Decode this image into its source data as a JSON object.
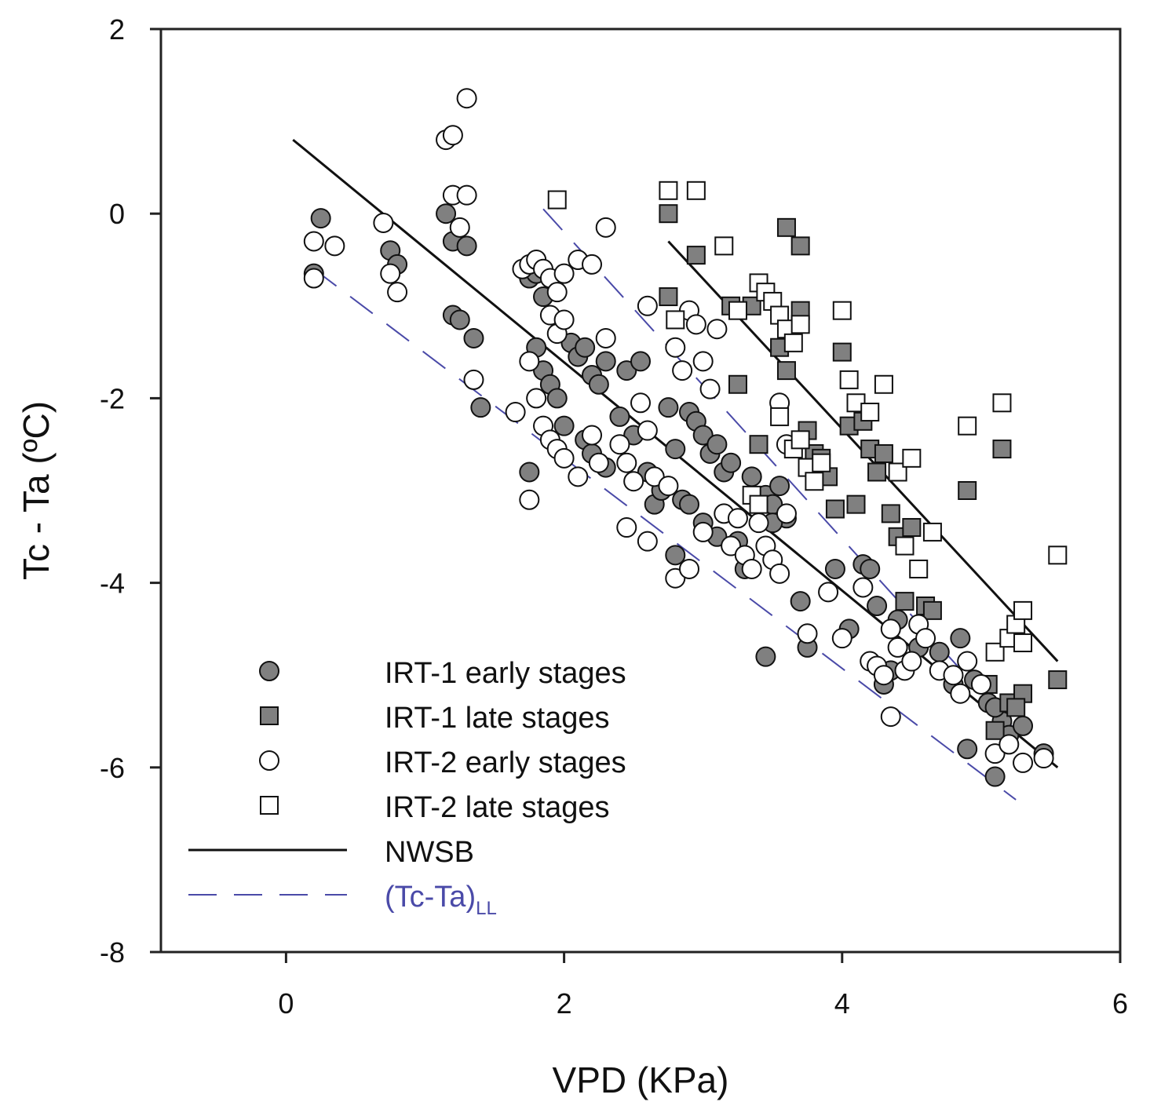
{
  "chart_data": {
    "type": "scatter",
    "title": "",
    "xlabel": "VPD (KPa)",
    "ylabel": "Tc - Ta (ºC)",
    "xlim": [
      -0.9,
      6
    ],
    "ylim": [
      -8,
      2
    ],
    "xticks": [
      "0",
      "2",
      "4",
      "6"
    ],
    "yticks": [
      "2",
      "0",
      "-2",
      "-4",
      "-6",
      "-8"
    ],
    "legend_position": "bottom-left",
    "series": [
      {
        "name": "IRT-1 early stages",
        "label": "IRT-1 early stages",
        "marker": "circle",
        "fill": "#808080",
        "points": [
          [
            0.25,
            -0.05
          ],
          [
            0.2,
            -0.65
          ],
          [
            0.75,
            -0.4
          ],
          [
            0.8,
            -0.55
          ],
          [
            1.15,
            0.0
          ],
          [
            1.2,
            -0.3
          ],
          [
            1.3,
            -0.35
          ],
          [
            1.2,
            -1.1
          ],
          [
            1.25,
            -1.15
          ],
          [
            1.35,
            -1.35
          ],
          [
            1.4,
            -2.1
          ],
          [
            1.75,
            -0.7
          ],
          [
            1.8,
            -0.65
          ],
          [
            1.85,
            -0.9
          ],
          [
            1.8,
            -1.45
          ],
          [
            1.85,
            -1.7
          ],
          [
            1.9,
            -1.85
          ],
          [
            1.95,
            -2.0
          ],
          [
            2.0,
            -2.3
          ],
          [
            2.05,
            -1.4
          ],
          [
            2.1,
            -1.55
          ],
          [
            2.15,
            -1.45
          ],
          [
            2.2,
            -1.75
          ],
          [
            2.25,
            -1.85
          ],
          [
            2.3,
            -1.6
          ],
          [
            2.15,
            -2.45
          ],
          [
            2.2,
            -2.6
          ],
          [
            2.3,
            -2.75
          ],
          [
            2.4,
            -2.2
          ],
          [
            2.5,
            -2.4
          ],
          [
            2.6,
            -2.8
          ],
          [
            2.65,
            -3.15
          ],
          [
            2.7,
            -3.0
          ],
          [
            2.45,
            -1.7
          ],
          [
            2.55,
            -1.6
          ],
          [
            2.75,
            -2.1
          ],
          [
            2.8,
            -2.55
          ],
          [
            2.85,
            -3.1
          ],
          [
            2.9,
            -2.15
          ],
          [
            2.95,
            -2.25
          ],
          [
            3.0,
            -2.4
          ],
          [
            3.05,
            -2.6
          ],
          [
            3.1,
            -2.5
          ],
          [
            3.15,
            -2.8
          ],
          [
            3.2,
            -2.7
          ],
          [
            3.25,
            -3.55
          ],
          [
            3.3,
            -3.85
          ],
          [
            3.35,
            -2.85
          ],
          [
            3.4,
            -3.1
          ],
          [
            3.45,
            -3.05
          ],
          [
            3.5,
            -3.15
          ],
          [
            3.55,
            -2.95
          ],
          [
            3.6,
            -3.3
          ],
          [
            1.75,
            -2.8
          ],
          [
            2.8,
            -3.7
          ],
          [
            2.9,
            -3.15
          ],
          [
            3.0,
            -3.35
          ],
          [
            3.1,
            -3.5
          ],
          [
            3.5,
            -3.35
          ],
          [
            3.7,
            -4.2
          ],
          [
            3.75,
            -4.7
          ],
          [
            3.45,
            -4.8
          ],
          [
            3.95,
            -3.85
          ],
          [
            4.05,
            -4.5
          ],
          [
            4.15,
            -3.8
          ],
          [
            4.2,
            -3.85
          ],
          [
            4.25,
            -4.25
          ],
          [
            4.3,
            -5.1
          ],
          [
            4.35,
            -4.95
          ],
          [
            4.4,
            -4.4
          ],
          [
            4.55,
            -4.7
          ],
          [
            4.7,
            -4.75
          ],
          [
            4.8,
            -5.1
          ],
          [
            4.85,
            -4.6
          ],
          [
            4.9,
            -5.8
          ],
          [
            4.95,
            -5.05
          ],
          [
            5.05,
            -5.3
          ],
          [
            5.1,
            -6.1
          ],
          [
            5.15,
            -5.5
          ],
          [
            5.2,
            -5.65
          ],
          [
            5.3,
            -5.55
          ],
          [
            5.45,
            -5.85
          ],
          [
            5.1,
            -5.35
          ]
        ]
      },
      {
        "name": "IRT-1 late stages",
        "label": "IRT-1 late stages",
        "marker": "square",
        "fill": "#808080",
        "points": [
          [
            2.75,
            0.0
          ],
          [
            2.75,
            -0.9
          ],
          [
            2.95,
            -0.45
          ],
          [
            3.2,
            -1.0
          ],
          [
            3.25,
            -1.85
          ],
          [
            3.35,
            -1.0
          ],
          [
            3.4,
            -2.5
          ],
          [
            3.6,
            -0.15
          ],
          [
            3.7,
            -0.35
          ],
          [
            3.55,
            -1.45
          ],
          [
            3.6,
            -1.7
          ],
          [
            3.7,
            -1.05
          ],
          [
            3.75,
            -2.35
          ],
          [
            3.8,
            -2.6
          ],
          [
            3.85,
            -2.65
          ],
          [
            3.9,
            -2.85
          ],
          [
            3.95,
            -3.2
          ],
          [
            4.0,
            -1.5
          ],
          [
            4.05,
            -2.3
          ],
          [
            4.1,
            -3.15
          ],
          [
            4.15,
            -2.25
          ],
          [
            4.2,
            -2.55
          ],
          [
            4.25,
            -2.8
          ],
          [
            4.3,
            -2.6
          ],
          [
            4.35,
            -3.25
          ],
          [
            4.4,
            -3.5
          ],
          [
            4.45,
            -4.2
          ],
          [
            4.5,
            -3.4
          ],
          [
            4.6,
            -4.25
          ],
          [
            4.65,
            -4.3
          ],
          [
            4.9,
            -3.0
          ],
          [
            5.05,
            -5.1
          ],
          [
            5.15,
            -2.55
          ],
          [
            5.2,
            -5.3
          ],
          [
            5.3,
            -5.2
          ],
          [
            5.55,
            -5.05
          ],
          [
            5.1,
            -5.6
          ],
          [
            5.25,
            -5.35
          ]
        ]
      },
      {
        "name": "IRT-2 early stages",
        "label": "IRT-2 early stages",
        "marker": "circle",
        "fill": "#ffffff",
        "points": [
          [
            0.2,
            -0.3
          ],
          [
            0.2,
            -0.7
          ],
          [
            0.35,
            -0.35
          ],
          [
            0.7,
            -0.1
          ],
          [
            0.75,
            -0.65
          ],
          [
            0.8,
            -0.85
          ],
          [
            1.15,
            0.8
          ],
          [
            1.2,
            0.85
          ],
          [
            1.3,
            1.25
          ],
          [
            1.2,
            0.2
          ],
          [
            1.3,
            0.2
          ],
          [
            1.25,
            -0.15
          ],
          [
            1.35,
            -1.8
          ],
          [
            1.65,
            -2.15
          ],
          [
            1.7,
            -0.6
          ],
          [
            1.75,
            -0.55
          ],
          [
            1.8,
            -0.5
          ],
          [
            1.85,
            -0.6
          ],
          [
            1.9,
            -0.7
          ],
          [
            1.95,
            -0.85
          ],
          [
            2.0,
            -0.65
          ],
          [
            2.1,
            -0.5
          ],
          [
            2.2,
            -0.55
          ],
          [
            2.3,
            -0.15
          ],
          [
            1.9,
            -1.1
          ],
          [
            1.95,
            -1.3
          ],
          [
            2.0,
            -1.15
          ],
          [
            1.75,
            -1.6
          ],
          [
            1.8,
            -2.0
          ],
          [
            1.85,
            -2.3
          ],
          [
            1.9,
            -2.45
          ],
          [
            1.95,
            -2.55
          ],
          [
            2.0,
            -2.65
          ],
          [
            2.1,
            -2.85
          ],
          [
            2.2,
            -2.4
          ],
          [
            2.25,
            -2.7
          ],
          [
            2.3,
            -1.35
          ],
          [
            2.4,
            -2.5
          ],
          [
            2.45,
            -2.7
          ],
          [
            2.5,
            -2.9
          ],
          [
            2.55,
            -2.05
          ],
          [
            2.6,
            -1.0
          ],
          [
            2.6,
            -2.35
          ],
          [
            2.65,
            -2.85
          ],
          [
            2.75,
            -2.95
          ],
          [
            2.8,
            -1.45
          ],
          [
            2.85,
            -1.7
          ],
          [
            2.9,
            -1.05
          ],
          [
            2.95,
            -1.2
          ],
          [
            3.0,
            -1.6
          ],
          [
            3.05,
            -1.9
          ],
          [
            3.1,
            -1.25
          ],
          [
            3.15,
            -3.25
          ],
          [
            3.2,
            -3.6
          ],
          [
            3.25,
            -3.3
          ],
          [
            3.3,
            -3.7
          ],
          [
            3.35,
            -3.85
          ],
          [
            3.4,
            -3.35
          ],
          [
            3.45,
            -3.6
          ],
          [
            3.5,
            -3.75
          ],
          [
            3.55,
            -3.9
          ],
          [
            3.6,
            -3.25
          ],
          [
            1.75,
            -3.1
          ],
          [
            2.45,
            -3.4
          ],
          [
            2.6,
            -3.55
          ],
          [
            2.8,
            -3.95
          ],
          [
            2.9,
            -3.85
          ],
          [
            3.0,
            -3.45
          ],
          [
            3.55,
            -2.05
          ],
          [
            3.6,
            -2.5
          ],
          [
            3.75,
            -4.55
          ],
          [
            3.9,
            -4.1
          ],
          [
            4.0,
            -4.6
          ],
          [
            4.15,
            -4.05
          ],
          [
            4.2,
            -4.85
          ],
          [
            4.25,
            -4.9
          ],
          [
            4.3,
            -5.0
          ],
          [
            4.35,
            -4.5
          ],
          [
            4.4,
            -4.7
          ],
          [
            4.45,
            -4.95
          ],
          [
            4.5,
            -4.85
          ],
          [
            4.55,
            -4.45
          ],
          [
            4.35,
            -5.45
          ],
          [
            4.6,
            -4.6
          ],
          [
            4.7,
            -4.95
          ],
          [
            4.8,
            -5.0
          ],
          [
            4.85,
            -5.2
          ],
          [
            4.9,
            -4.85
          ],
          [
            5.0,
            -5.1
          ],
          [
            5.1,
            -5.85
          ],
          [
            5.2,
            -5.75
          ],
          [
            5.3,
            -5.95
          ],
          [
            5.45,
            -5.9
          ]
        ]
      },
      {
        "name": "IRT-2 late stages",
        "label": "IRT-2 late stages",
        "marker": "square",
        "fill": "#ffffff",
        "points": [
          [
            1.95,
            0.15
          ],
          [
            2.75,
            0.25
          ],
          [
            2.95,
            0.25
          ],
          [
            2.8,
            -1.15
          ],
          [
            3.15,
            -0.35
          ],
          [
            3.25,
            -1.05
          ],
          [
            3.4,
            -0.75
          ],
          [
            3.45,
            -0.85
          ],
          [
            3.5,
            -0.95
          ],
          [
            3.55,
            -1.1
          ],
          [
            3.6,
            -1.25
          ],
          [
            3.65,
            -1.4
          ],
          [
            3.7,
            -1.2
          ],
          [
            3.55,
            -2.2
          ],
          [
            3.65,
            -2.55
          ],
          [
            3.7,
            -2.45
          ],
          [
            3.75,
            -2.75
          ],
          [
            3.8,
            -2.9
          ],
          [
            3.85,
            -2.7
          ],
          [
            3.35,
            -3.05
          ],
          [
            3.4,
            -3.15
          ],
          [
            4.0,
            -1.05
          ],
          [
            4.05,
            -1.8
          ],
          [
            4.1,
            -2.05
          ],
          [
            4.2,
            -2.15
          ],
          [
            4.3,
            -1.85
          ],
          [
            4.4,
            -2.8
          ],
          [
            4.45,
            -3.6
          ],
          [
            4.5,
            -2.65
          ],
          [
            4.55,
            -3.85
          ],
          [
            4.65,
            -3.45
          ],
          [
            4.9,
            -2.3
          ],
          [
            5.15,
            -2.05
          ],
          [
            5.1,
            -4.75
          ],
          [
            5.2,
            -4.6
          ],
          [
            5.25,
            -4.45
          ],
          [
            5.3,
            -4.3
          ],
          [
            5.3,
            -4.65
          ],
          [
            5.55,
            -3.7
          ]
        ]
      }
    ],
    "lines": [
      {
        "name": "NWSB",
        "label": "NWSB",
        "style": "solid",
        "color": "#111111",
        "x": [
          0.05,
          5.55
        ],
        "y": [
          0.8,
          -6.0
        ]
      },
      {
        "name": "NWSB-late",
        "label": "NWSB",
        "style": "solid",
        "color": "#111111",
        "x": [
          2.75,
          5.55
        ],
        "y": [
          -0.3,
          -4.85
        ]
      },
      {
        "name": "(Tc-Ta)LL",
        "label": "(Tc-Ta)",
        "subscript": "LL",
        "style": "dashed",
        "color": "#4a4aa8",
        "x": [
          0.2,
          5.25
        ],
        "y": [
          -0.6,
          -6.35
        ]
      },
      {
        "name": "(Tc-Ta)LL-late",
        "label": "(Tc-Ta)",
        "subscript": "LL",
        "style": "dashed",
        "color": "#4a4aa8",
        "x": [
          1.85,
          5.25
        ],
        "y": [
          0.05,
          -5.6
        ]
      }
    ],
    "legend": [
      {
        "label": "IRT-1 early stages",
        "marker": "circle",
        "fill": "#808080"
      },
      {
        "label": "IRT-1 late stages",
        "marker": "square",
        "fill": "#808080"
      },
      {
        "label": "IRT-2 early stages",
        "marker": "circle",
        "fill": "#ffffff"
      },
      {
        "label": "IRT-2 late stages",
        "marker": "square",
        "fill": "#ffffff"
      },
      {
        "label": "NWSB",
        "marker": "line-solid",
        "color": "#111111"
      },
      {
        "label": "(Tc-Ta)",
        "subscript": "LL",
        "marker": "line-dashed",
        "color": "#4a4aa8"
      }
    ]
  }
}
